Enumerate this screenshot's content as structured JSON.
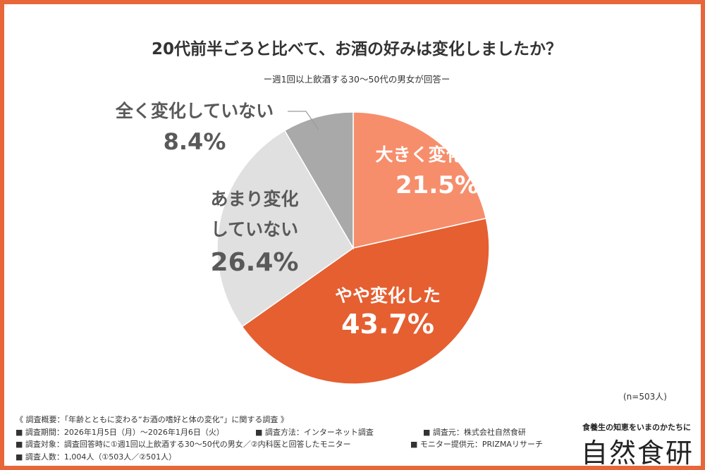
{
  "title": "20代前半ごろと比べて、お酒の好みは変化しましたか？",
  "subtitle": "ー週1回以上飲酒する30〜50代の男女が回答ー",
  "chart_data": {
    "type": "pie",
    "title": "20代前半ごろと比べて、お酒の好みは変化しましたか？",
    "slices": [
      {
        "label": "大きく変化した",
        "label_lines": [
          "大きく変化した"
        ],
        "value": 21.5,
        "value_text": "21.5%",
        "color": "#f68e6c",
        "text_color": "#ffffff"
      },
      {
        "label": "やや変化した",
        "label_lines": [
          "やや変化した"
        ],
        "value": 43.7,
        "value_text": "43.7%",
        "color": "#e55f31",
        "text_color": "#ffffff"
      },
      {
        "label": "あまり変化していない",
        "label_lines": [
          "あまり変化",
          "していない"
        ],
        "value": 26.4,
        "value_text": "26.4%",
        "color": "#e0e0e0",
        "text_color": "#595959"
      },
      {
        "label": "全く変化していない",
        "label_lines": [
          "全く変化していない"
        ],
        "value": 8.4,
        "value_text": "8.4%",
        "color": "#a9a9a9",
        "text_color": "#595959"
      }
    ],
    "start": "12 o'clock",
    "direction": "clockwise"
  },
  "n_note": "(n=503人)",
  "footnote": {
    "survey_title": "《 調査概要：「年齢とともに変わる“お酒の嗜好と体の変化”」に関する調査 》",
    "period": "■ 調査期間：2026年1月5日（月）〜2026年1月6日（火）",
    "method": "■ 調査方法：インターネット調査",
    "source": "■ 調査元：株式会社自然食研",
    "target": "■ 調査対象：調査回答時に①週1回以上飲酒する30〜50代の男女／②内科医と回答したモニター",
    "provider": "■ モニター提供元：PRIZMAリサーチ",
    "count": "■ 調査人数：1,004人（①503人／②501人）"
  },
  "logo": {
    "tagline": "食養生の知恵をいまのかたちに",
    "name": "自然食研"
  },
  "colors": {
    "border": "#e8673a",
    "text": "#333333"
  }
}
